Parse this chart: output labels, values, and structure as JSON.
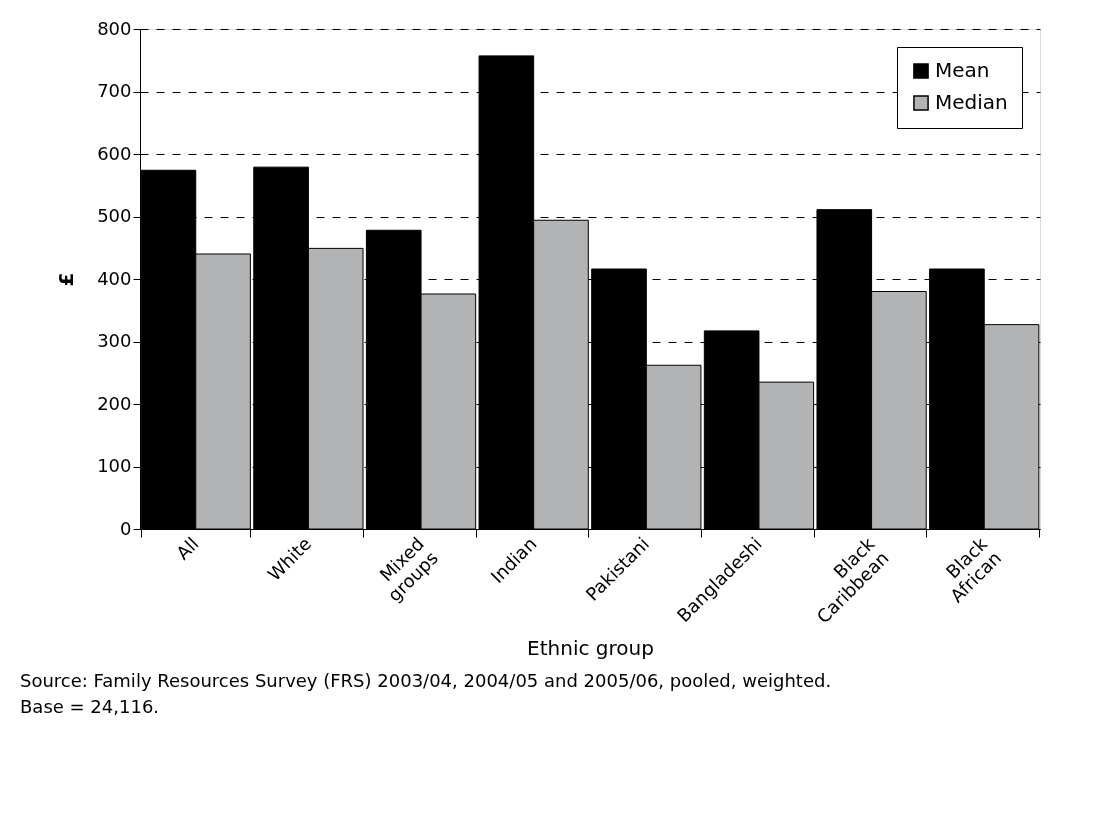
{
  "chart_data": {
    "type": "bar",
    "xlabel": "Ethnic group",
    "ylabel": "£",
    "categories": [
      "All",
      "White",
      "Mixed groups",
      "Indian",
      "Pakistani",
      "Bangladeshi",
      "Black Caribbean",
      "Black African"
    ],
    "series": [
      {
        "name": "Mean",
        "color": "#000000",
        "values": [
          574,
          579,
          478,
          757,
          416,
          317,
          511,
          416
        ]
      },
      {
        "name": "Median",
        "color": "#b2b3b5",
        "values": [
          440,
          449,
          376,
          494,
          262,
          235,
          380,
          327
        ]
      }
    ],
    "ylim": [
      0,
      800
    ],
    "yticks": [
      0,
      100,
      200,
      300,
      400,
      500,
      600,
      700,
      800
    ],
    "grid": "y",
    "legend": "top right",
    "annotations": [
      "Source: Family Resources Survey (FRS) 2003/04, 2004/05 and 2005/06, pooled, weighted.",
      "Base = 24,116."
    ]
  }
}
